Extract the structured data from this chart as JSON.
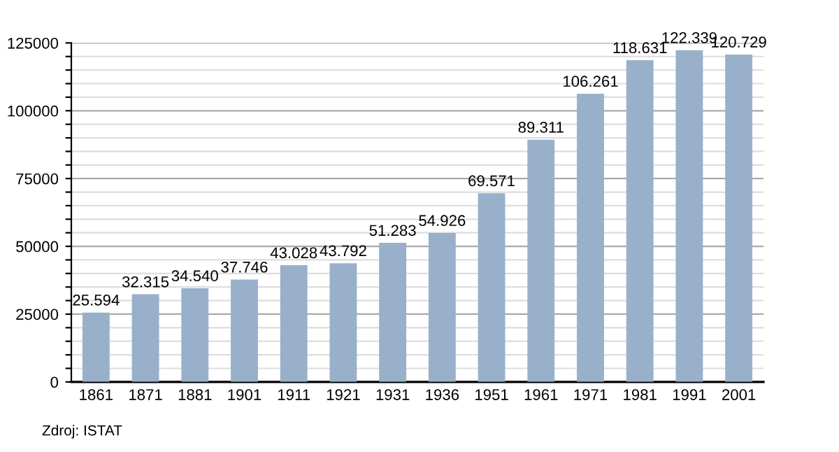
{
  "chart_data": {
    "type": "bar",
    "categories": [
      "1861",
      "1871",
      "1881",
      "1901",
      "1911",
      "1921",
      "1931",
      "1936",
      "1951",
      "1961",
      "1971",
      "1981",
      "1991",
      "2001"
    ],
    "values": [
      25594,
      32315,
      34540,
      37746,
      43028,
      43792,
      51283,
      54926,
      69571,
      89311,
      106261,
      118631,
      122339,
      120729
    ],
    "value_labels": [
      "25.594",
      "32.315",
      "34.540",
      "37.746",
      "43.028",
      "43.792",
      "51.283",
      "54.926",
      "69.571",
      "89.311",
      "106.261",
      "118.631",
      "122.339",
      "120.729"
    ],
    "color": "#99b0cb",
    "ylim": [
      0,
      125000
    ],
    "yticks": [
      0,
      {
        "value": 5000,
        "label": null
      },
      {
        "value": 10000,
        "label": null
      },
      {
        "value": 15000,
        "label": null
      },
      {
        "value": 20000,
        "label": null
      },
      25000,
      {
        "value": 30000,
        "label": null
      },
      {
        "value": 35000,
        "label": null
      },
      {
        "value": 40000,
        "label": null
      },
      {
        "value": 45000,
        "label": null
      },
      50000,
      {
        "value": 55000,
        "label": null
      },
      {
        "value": 60000,
        "label": null
      },
      {
        "value": 65000,
        "label": null
      },
      {
        "value": 70000,
        "label": null
      },
      75000,
      {
        "value": 80000,
        "label": null
      },
      {
        "value": 85000,
        "label": null
      },
      {
        "value": 90000,
        "label": null
      },
      {
        "value": 95000,
        "label": null
      },
      100000,
      {
        "value": 105000,
        "label": null
      },
      {
        "value": 110000,
        "label": null
      },
      {
        "value": 115000,
        "label": null
      },
      {
        "value": 120000,
        "label": null
      },
      125000
    ],
    "grid": "y",
    "annotations": [
      "Zdroj: ISTAT"
    ]
  }
}
